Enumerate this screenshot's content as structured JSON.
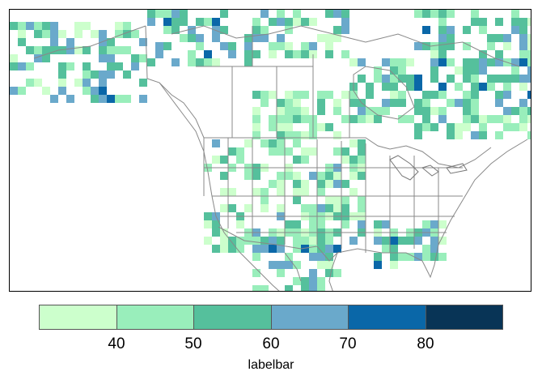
{
  "labelbar": {
    "title": "labelbar",
    "ticks": [
      "40",
      "50",
      "60",
      "70",
      "80"
    ],
    "colors": [
      "#ccffcc",
      "#99eebb",
      "#55c09c",
      "#6aa9cb",
      "#0a67a8",
      "#083456"
    ]
  },
  "map": {
    "region": "North America",
    "land_color": "#ffffff",
    "border_color": "#888888",
    "coast_color": "#888888",
    "frame_color": "#000000"
  }
}
